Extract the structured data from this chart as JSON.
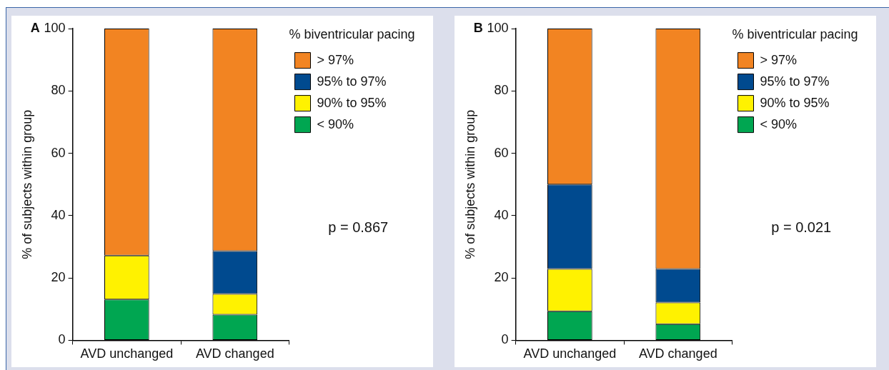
{
  "chart_data": [
    {
      "type": "bar",
      "title": "A",
      "stacked": true,
      "categories": [
        "AVD unchanged",
        "AVD changed"
      ],
      "ylabel": "% of subjects within group",
      "legend_title": "% biventricular pacing",
      "legend": "top right",
      "grid": false,
      "ylim": [
        0,
        100
      ],
      "yticks": [
        0,
        20,
        40,
        60,
        80,
        100
      ],
      "series": [
        {
          "name": "< 90%",
          "color": "#00a651",
          "values": [
            13.1,
            8.2
          ]
        },
        {
          "name": "90% to 95%",
          "color": "#fff200",
          "values": [
            14.1,
            6.7
          ]
        },
        {
          "name": "95% to 97%",
          "color": "#004a8f",
          "values": [
            0,
            13.7
          ]
        },
        {
          "name": "> 97%",
          "color": "#f28422",
          "values": [
            72.8,
            71.4
          ]
        }
      ],
      "annotations": [
        "p = 0.867"
      ]
    },
    {
      "type": "bar",
      "title": "B",
      "stacked": true,
      "categories": [
        "AVD unchanged",
        "AVD changed"
      ],
      "ylabel": "% of subjects within group",
      "legend_title": "% biventricular pacing",
      "legend": "top right",
      "grid": false,
      "ylim": [
        0,
        100
      ],
      "yticks": [
        0,
        20,
        40,
        60,
        80,
        100
      ],
      "series": [
        {
          "name": "< 90%",
          "color": "#00a651",
          "values": [
            9.3,
            5.2
          ]
        },
        {
          "name": "90% to 95%",
          "color": "#fff200",
          "values": [
            13.6,
            6.9
          ]
        },
        {
          "name": "95% to 97%",
          "color": "#004a8f",
          "values": [
            27.1,
            10.8
          ]
        },
        {
          "name": "> 97%",
          "color": "#f28422",
          "values": [
            50,
            77.1
          ]
        }
      ],
      "annotations": [
        "p = 0.021"
      ]
    }
  ]
}
